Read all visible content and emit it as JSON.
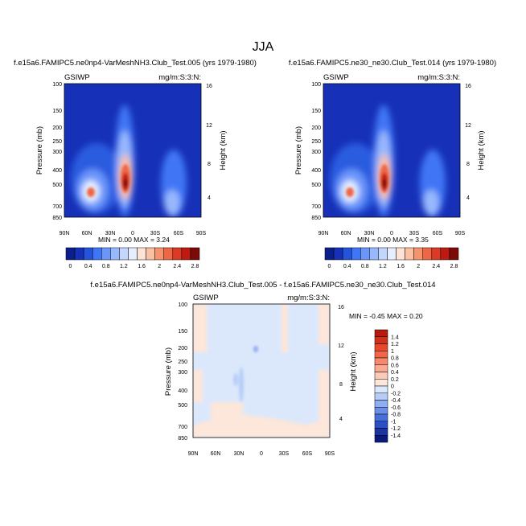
{
  "figure": {
    "title": "JJA"
  },
  "chart_data": [
    {
      "type": "heatmap",
      "title": "f.e15a6.FAMIPC5.ne0np4-VarMeshNH3.Club_Test.005 (yrs 1979-1980)",
      "left_label": "GSIWP",
      "right_label": "mg/m:S:3:N:",
      "xlabel": "",
      "ylabel": "Pressure (mb)",
      "y2label": "Height (km)",
      "x_ticks": [
        "90N",
        "60N",
        "30N",
        "0",
        "30S",
        "60S",
        "90S"
      ],
      "y_ticks": [
        "100",
        "150",
        "200",
        "250",
        "300",
        "400",
        "500",
        "700",
        "850"
      ],
      "y2_ticks": [
        "16",
        "12",
        "8",
        "4"
      ],
      "stats": "MIN =  0.00  MAX =  3.24",
      "colorbar": {
        "labels": [
          "0",
          "0.4",
          "0.8",
          "1.2",
          "1.6",
          "2",
          "2.4",
          "2.8"
        ],
        "colors": [
          "#0b1f8c",
          "#1631b8",
          "#2453de",
          "#3f76f5",
          "#6a96fb",
          "#98b8fd",
          "#c2d6fe",
          "#e6efff",
          "#fde3d3",
          "#fbbfa2",
          "#f7936c",
          "#ee6646",
          "#dc3a25",
          "#be1a12",
          "#7c0a07"
        ]
      },
      "max_value": 3.24
    },
    {
      "type": "heatmap",
      "title": "f.e15a6.FAMIPC5.ne30_ne30.Club_Test.014 (yrs 1979-1980)",
      "left_label": "GSIWP",
      "right_label": "mg/m:S:3:N:",
      "xlabel": "",
      "ylabel": "Pressure (mb)",
      "y2label": "Height (km)",
      "x_ticks": [
        "90N",
        "60N",
        "30N",
        "0",
        "30S",
        "60S",
        "90S"
      ],
      "y_ticks": [
        "100",
        "150",
        "200",
        "250",
        "300",
        "400",
        "500",
        "700",
        "850"
      ],
      "y2_ticks": [
        "16",
        "12",
        "8",
        "4"
      ],
      "stats": "MIN =  0.00  MAX =  3.35",
      "colorbar": {
        "labels": [
          "0",
          "0.4",
          "0.8",
          "1.2",
          "1.6",
          "2",
          "2.4",
          "2.8"
        ],
        "colors": [
          "#0b1f8c",
          "#1631b8",
          "#2453de",
          "#3f76f5",
          "#6a96fb",
          "#98b8fd",
          "#c2d6fe",
          "#e6efff",
          "#fde3d3",
          "#fbbfa2",
          "#f7936c",
          "#ee6646",
          "#dc3a25",
          "#be1a12",
          "#7c0a07"
        ]
      },
      "max_value": 3.35
    },
    {
      "type": "heatmap",
      "title": "f.e15a6.FAMIPC5.ne0np4-VarMeshNH3.Club_Test.005 - f.e15a6.FAMIPC5.ne30_ne30.Club_Test.014",
      "left_label": "GSIWP",
      "right_label": "mg/m:S:3:N:",
      "xlabel": "",
      "ylabel": "Pressure (mb)",
      "y2label": "Height (km)",
      "x_ticks": [
        "90N",
        "60N",
        "30N",
        "0",
        "30S",
        "60S",
        "90S"
      ],
      "y_ticks": [
        "100",
        "150",
        "200",
        "250",
        "300",
        "400",
        "500",
        "700",
        "850"
      ],
      "y2_ticks": [
        "16",
        "12",
        "8",
        "4"
      ],
      "stats": "MIN = -0.45  MAX =  0.20",
      "colorbar": {
        "labels": [
          "1.4",
          "1.2",
          "1",
          "0.8",
          "0.6",
          "0.4",
          "0.2",
          "0",
          "-0.2",
          "-0.4",
          "-0.6",
          "-0.8",
          "-1",
          "-1.2",
          "-1.4"
        ],
        "colors": [
          "#b51c0f",
          "#d2301c",
          "#e8492c",
          "#f2654a",
          "#f7886c",
          "#f9ab92",
          "#fbcbb8",
          "#fde6da",
          "#dbe8fb",
          "#b6cdf7",
          "#8eaef2",
          "#6a8fe9",
          "#4570dc",
          "#2a50c6",
          "#1a34a6",
          "#0b1a7a"
        ]
      },
      "min_value": -0.45,
      "max_value": 0.2
    }
  ]
}
